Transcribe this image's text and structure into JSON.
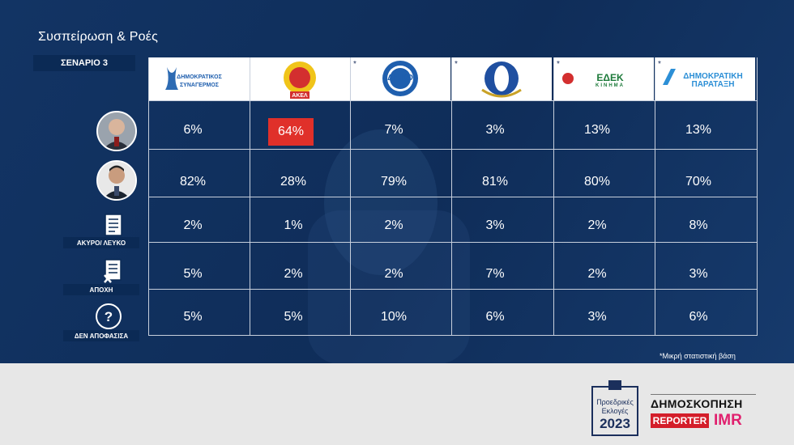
{
  "header": {
    "title": "Συσπείρωση & Ροές",
    "scenario": "ΣΕΝΑΡΙΟ 3"
  },
  "parties": [
    {
      "logo_text": [
        "ΔΗΜΟΚΡΑΤΙΚΟΣ",
        "ΣΥΝΑΓΕΡΜΟΣ"
      ],
      "asterisk": ""
    },
    {
      "logo_text": [
        "ΑΚΕΛ"
      ],
      "asterisk": ""
    },
    {
      "logo_text": [
        "ΔΗ.ΚΟ"
      ],
      "asterisk": "*"
    },
    {
      "logo_text": [
        ""
      ],
      "asterisk": "*"
    },
    {
      "logo_text": [
        "ΕΔΕΚ",
        "ΚΙΝΗΜΑ"
      ],
      "asterisk": "*"
    },
    {
      "logo_text": [
        "ΔΗΜΟΚΡΑΤΙΚΗ",
        "ΠΑΡΑΤΑΞΗ"
      ],
      "asterisk": "*"
    }
  ],
  "rows": [
    {
      "label": "",
      "icon": "candidate-1-avatar"
    },
    {
      "label": "",
      "icon": "candidate-2-avatar"
    },
    {
      "label": "ΑΚΥΡΟ/ ΛΕΥΚΟ",
      "icon": "ballot-document-icon"
    },
    {
      "label": "ΑΠΟΧΗ",
      "icon": "ballot-crossed-icon"
    },
    {
      "label": "ΔΕΝ ΑΠΟΦΑΣΙΣΑ",
      "icon": "question-mark-icon"
    }
  ],
  "chart_data": {
    "type": "table",
    "columns": [
      "ΔΗΜΟΚΡΑΤΙΚΟΣ ΣΥΝΑΓΕΡΜΟΣ",
      "ΑΚΕΛ",
      "ΔΗ.ΚΟ",
      "",
      "ΕΔΕΚ ΚΙΝΗΜΑ",
      "ΔΗΜΟΚΡΑΤΙΚΗ ΠΑΡΑΤΑΞΗ"
    ],
    "row_labels": [
      "",
      "",
      "ΑΚΥΡΟ/ ΛΕΥΚΟ",
      "ΑΠΟΧΗ",
      "ΔΕΝ ΑΠΟΦΑΣΙΣΑ"
    ],
    "values": [
      [
        "6%",
        "64%",
        "7%",
        "3%",
        "13%",
        "13%"
      ],
      [
        "82%",
        "28%",
        "79%",
        "81%",
        "80%",
        "70%"
      ],
      [
        "2%",
        "1%",
        "2%",
        "3%",
        "2%",
        "8%"
      ],
      [
        "5%",
        "2%",
        "2%",
        "7%",
        "2%",
        "3%"
      ],
      [
        "5%",
        "5%",
        "10%",
        "6%",
        "3%",
        "6%"
      ]
    ],
    "highlight": {
      "row": 0,
      "col": 1,
      "color": "#e0302a"
    }
  },
  "footer": {
    "note": "*Μικρή στατιστική βάση",
    "badge": [
      "Προεδρικές",
      "Εκλογές",
      "2023"
    ],
    "poll_title": "ΔΗΜΟΣΚΟΠΗΣΗ",
    "reporter": "REPORTER",
    "imr": "IMR"
  },
  "colors": {
    "navy": "#123464",
    "highlight": "#e0302a",
    "label_bg": "#0b2a55"
  }
}
